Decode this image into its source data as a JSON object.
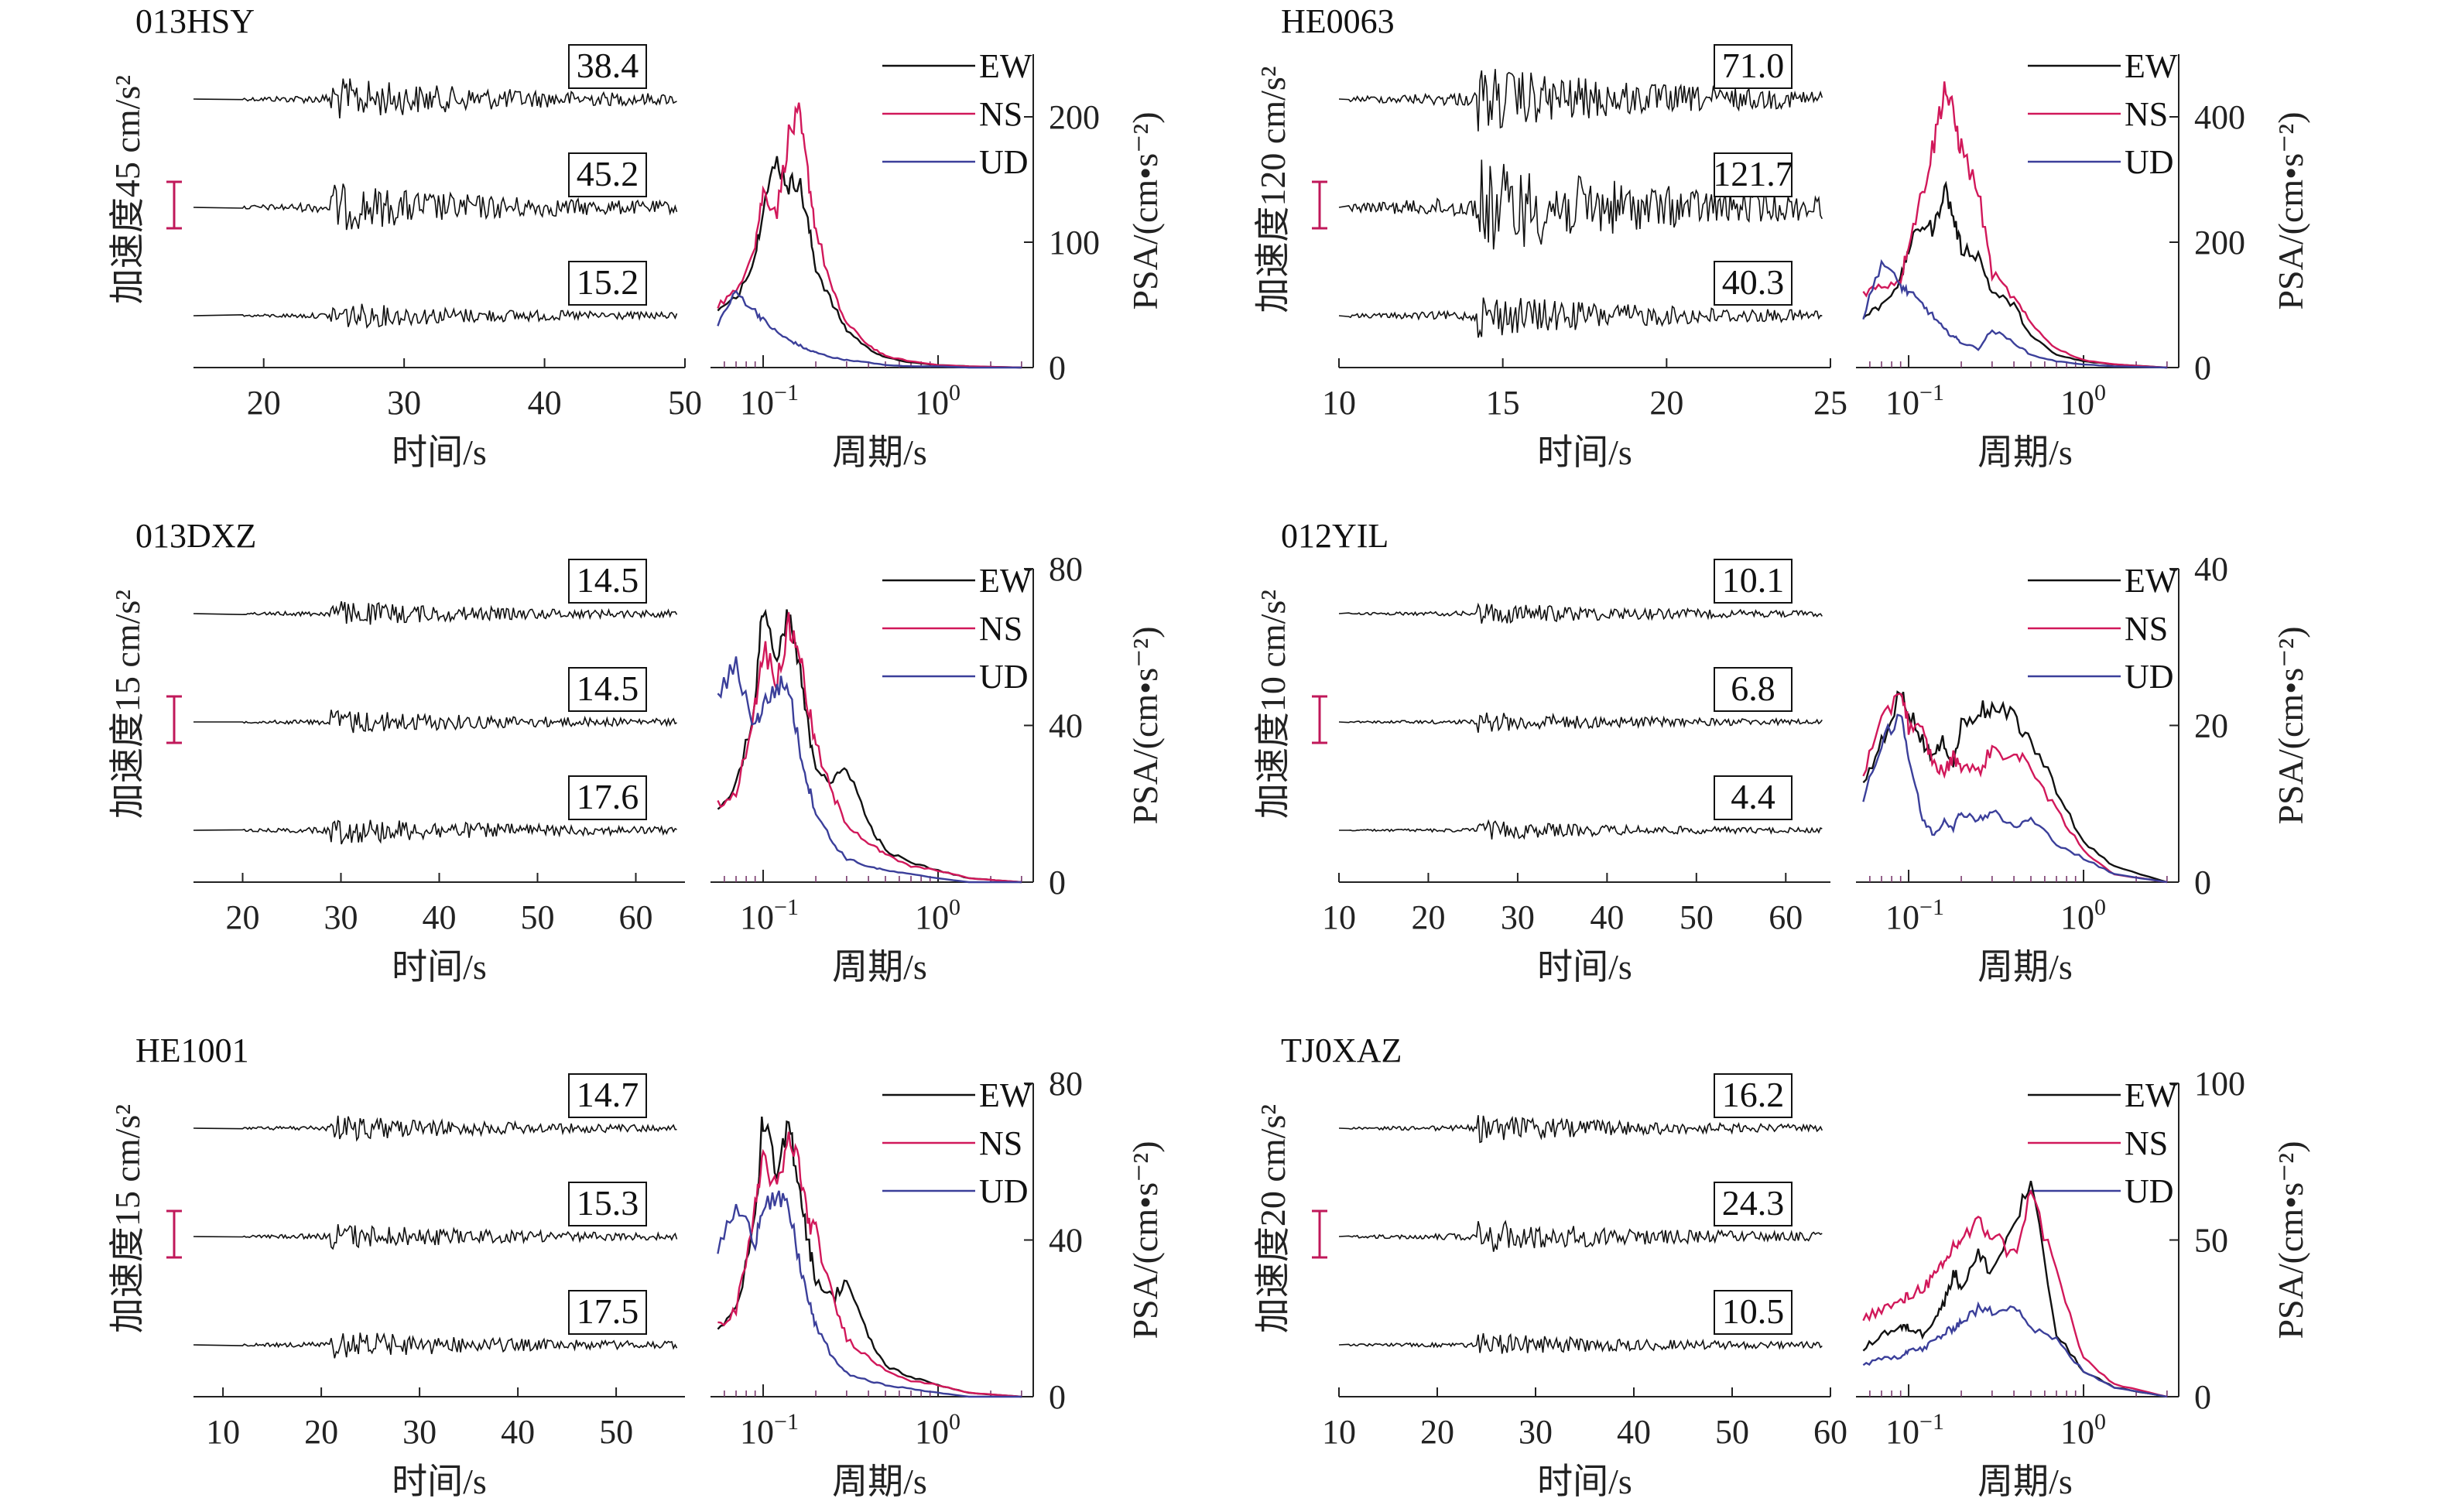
{
  "chart_data": [
    {
      "type": "line",
      "panel": "time-history",
      "station": "013HSY",
      "ylabel": "加速度45 cm/s²",
      "xlabel": "时间/s",
      "x_ticks": [
        "20",
        "30",
        "40",
        "50"
      ],
      "xlim": [
        15,
        50
      ],
      "components": [
        "EW",
        "NS",
        "UD"
      ],
      "peak_values": [
        "38.4",
        "45.2",
        "15.2"
      ],
      "colors": {
        "trace": "#111111",
        "scale": "#c0185a"
      }
    },
    {
      "type": "line",
      "panel": "spectrum",
      "station": "013HSY",
      "xlabel": "周期/s",
      "ylabel": "PSA/(cm•s⁻²)",
      "x_scale": "log",
      "x_ticks": [
        {
          "base": "10",
          "exp": "−1"
        },
        {
          "base": "10",
          "exp": "0"
        }
      ],
      "y_ticks": [
        "0",
        "100",
        "200"
      ],
      "ylim": [
        0,
        250
      ],
      "legend": [
        "EW",
        "NS",
        "UD"
      ],
      "colors": {
        "EW": "#111111",
        "NS": "#d1185a",
        "UD": "#3b3f9a"
      },
      "series": [
        {
          "name": "EW",
          "x": [
            0.055,
            0.07,
            0.09,
            0.1,
            0.12,
            0.14,
            0.16,
            0.18,
            0.2,
            0.25,
            0.3,
            0.4,
            0.5,
            0.7,
            1.0,
            1.5,
            3
          ],
          "values": [
            45,
            55,
            90,
            130,
            165,
            145,
            150,
            115,
            80,
            50,
            30,
            15,
            8,
            4,
            2,
            1,
            0
          ]
        },
        {
          "name": "NS",
          "x": [
            0.055,
            0.07,
            0.09,
            0.1,
            0.12,
            0.14,
            0.16,
            0.18,
            0.2,
            0.25,
            0.3,
            0.4,
            0.5,
            0.7,
            1.0,
            1.5,
            3
          ],
          "values": [
            50,
            60,
            100,
            140,
            125,
            185,
            200,
            155,
            110,
            60,
            35,
            18,
            9,
            5,
            2,
            1,
            0
          ]
        },
        {
          "name": "UD",
          "x": [
            0.055,
            0.07,
            0.09,
            0.1,
            0.12,
            0.14,
            0.16,
            0.18,
            0.2,
            0.25,
            0.3,
            0.4,
            0.5,
            0.7,
            1.0,
            1.5,
            3
          ],
          "values": [
            35,
            60,
            45,
            38,
            28,
            22,
            18,
            14,
            12,
            8,
            6,
            4,
            2,
            1,
            1,
            0,
            0
          ]
        }
      ]
    },
    {
      "type": "line",
      "panel": "time-history",
      "station": "HE0063",
      "ylabel": "加速度120 cm/s²",
      "xlabel": "时间/s",
      "x_ticks": [
        "10",
        "15",
        "20",
        "25"
      ],
      "xlim": [
        10,
        25
      ],
      "components": [
        "EW",
        "NS",
        "UD"
      ],
      "peak_values": [
        "71.0",
        "121.7",
        "40.3"
      ],
      "colors": {
        "trace": "#111111",
        "scale": "#c0185a"
      }
    },
    {
      "type": "line",
      "panel": "spectrum",
      "station": "HE0063",
      "xlabel": "周期/s",
      "ylabel": "PSA/(cm•s⁻²)",
      "x_scale": "log",
      "x_ticks": [
        {
          "base": "10",
          "exp": "−1"
        },
        {
          "base": "10",
          "exp": "0"
        }
      ],
      "y_ticks": [
        "0",
        "200",
        "400"
      ],
      "ylim": [
        0,
        500
      ],
      "legend": [
        "EW",
        "NS",
        "UD"
      ],
      "colors": {
        "EW": "#111111",
        "NS": "#d1185a",
        "UD": "#3b3f9a"
      },
      "series": [
        {
          "name": "EW",
          "x": [
            0.055,
            0.07,
            0.09,
            0.1,
            0.12,
            0.14,
            0.16,
            0.18,
            0.2,
            0.25,
            0.3,
            0.4,
            0.5,
            0.7,
            1.0,
            1.5,
            3
          ],
          "values": [
            80,
            100,
            140,
            190,
            230,
            220,
            290,
            240,
            190,
            180,
            120,
            100,
            50,
            20,
            10,
            5,
            0
          ]
        },
        {
          "name": "NS",
          "x": [
            0.055,
            0.07,
            0.09,
            0.1,
            0.12,
            0.14,
            0.16,
            0.18,
            0.2,
            0.25,
            0.3,
            0.4,
            0.5,
            0.7,
            1.0,
            1.5,
            3
          ],
          "values": [
            120,
            130,
            140,
            200,
            280,
            360,
            450,
            400,
            350,
            280,
            150,
            110,
            70,
            30,
            12,
            5,
            0
          ]
        },
        {
          "name": "UD",
          "x": [
            0.055,
            0.07,
            0.09,
            0.1,
            0.12,
            0.14,
            0.16,
            0.18,
            0.2,
            0.25,
            0.3,
            0.4,
            0.5,
            0.7,
            1.0,
            1.5,
            3
          ],
          "values": [
            80,
            170,
            130,
            120,
            100,
            80,
            60,
            50,
            40,
            30,
            60,
            40,
            20,
            10,
            5,
            2,
            0
          ]
        }
      ]
    },
    {
      "type": "line",
      "panel": "time-history",
      "station": "013DXZ",
      "ylabel": "加速度15 cm/s²",
      "xlabel": "时间/s",
      "x_ticks": [
        "20",
        "30",
        "40",
        "50",
        "60"
      ],
      "xlim": [
        15,
        65
      ],
      "components": [
        "EW",
        "NS",
        "UD"
      ],
      "peak_values": [
        "14.5",
        "14.5",
        "17.6"
      ],
      "colors": {
        "trace": "#111111",
        "scale": "#c0185a"
      }
    },
    {
      "type": "line",
      "panel": "spectrum",
      "station": "013DXZ",
      "xlabel": "周期/s",
      "ylabel": "PSA/(cm•s⁻²)",
      "x_scale": "log",
      "x_ticks": [
        {
          "base": "10",
          "exp": "−1"
        },
        {
          "base": "10",
          "exp": "0"
        }
      ],
      "y_ticks": [
        "0",
        "40",
        "80"
      ],
      "ylim": [
        0,
        80
      ],
      "legend": [
        "EW",
        "NS",
        "UD"
      ],
      "colors": {
        "EW": "#111111",
        "NS": "#d1185a",
        "UD": "#3b3f9a"
      },
      "series": [
        {
          "name": "EW",
          "x": [
            0.055,
            0.07,
            0.09,
            0.1,
            0.12,
            0.14,
            0.16,
            0.18,
            0.2,
            0.25,
            0.3,
            0.4,
            0.5,
            0.7,
            1.0,
            1.5,
            3
          ],
          "values": [
            18,
            25,
            45,
            72,
            55,
            68,
            55,
            40,
            30,
            25,
            30,
            15,
            8,
            5,
            3,
            1,
            0
          ]
        },
        {
          "name": "NS",
          "x": [
            0.055,
            0.07,
            0.09,
            0.1,
            0.12,
            0.14,
            0.16,
            0.18,
            0.2,
            0.25,
            0.3,
            0.4,
            0.5,
            0.7,
            1.0,
            1.5,
            3
          ],
          "values": [
            20,
            22,
            45,
            60,
            52,
            65,
            60,
            45,
            35,
            22,
            15,
            10,
            7,
            4,
            3,
            1,
            0
          ]
        },
        {
          "name": "UD",
          "x": [
            0.055,
            0.07,
            0.09,
            0.1,
            0.12,
            0.14,
            0.16,
            0.18,
            0.2,
            0.25,
            0.3,
            0.4,
            0.5,
            0.7,
            1.0,
            1.5,
            3
          ],
          "values": [
            48,
            55,
            40,
            45,
            50,
            50,
            35,
            25,
            18,
            10,
            6,
            4,
            3,
            2,
            1,
            0,
            0
          ]
        }
      ]
    },
    {
      "type": "line",
      "panel": "time-history",
      "station": "012YIL",
      "ylabel": "加速度10 cm/s²",
      "xlabel": "时间/s",
      "x_ticks": [
        "10",
        "20",
        "30",
        "40",
        "50",
        "60"
      ],
      "xlim": [
        10,
        65
      ],
      "components": [
        "EW",
        "NS",
        "UD"
      ],
      "peak_values": [
        "10.1",
        "6.8",
        "4.4"
      ],
      "colors": {
        "trace": "#111111",
        "scale": "#c0185a"
      }
    },
    {
      "type": "line",
      "panel": "spectrum",
      "station": "012YIL",
      "xlabel": "周期/s",
      "ylabel": "PSA/(cm•s⁻²)",
      "x_scale": "log",
      "x_ticks": [
        {
          "base": "10",
          "exp": "−1"
        },
        {
          "base": "10",
          "exp": "0"
        }
      ],
      "y_ticks": [
        "0",
        "20",
        "40"
      ],
      "ylim": [
        0,
        40
      ],
      "legend": [
        "EW",
        "NS",
        "UD"
      ],
      "colors": {
        "EW": "#111111",
        "NS": "#d1185a",
        "UD": "#3b3f9a"
      },
      "series": [
        {
          "name": "EW",
          "x": [
            0.055,
            0.07,
            0.09,
            0.1,
            0.12,
            0.14,
            0.16,
            0.18,
            0.2,
            0.25,
            0.3,
            0.4,
            0.5,
            0.7,
            1.0,
            1.5,
            3
          ],
          "values": [
            12,
            18,
            24,
            22,
            18,
            16,
            18,
            15,
            20,
            22,
            22,
            21,
            18,
            12,
            5,
            2,
            0
          ]
        },
        {
          "name": "NS",
          "x": [
            0.055,
            0.07,
            0.09,
            0.1,
            0.12,
            0.14,
            0.16,
            0.18,
            0.2,
            0.25,
            0.3,
            0.4,
            0.5,
            0.7,
            1.0,
            1.5,
            3
          ],
          "values": [
            14,
            20,
            25,
            20,
            19,
            15,
            14,
            16,
            15,
            14,
            17,
            16,
            15,
            9,
            4,
            1,
            0
          ]
        },
        {
          "name": "UD",
          "x": [
            0.055,
            0.07,
            0.09,
            0.1,
            0.12,
            0.14,
            0.16,
            0.18,
            0.2,
            0.25,
            0.3,
            0.4,
            0.5,
            0.7,
            1.0,
            1.5,
            3
          ],
          "values": [
            10,
            18,
            22,
            16,
            8,
            6,
            8,
            7,
            9,
            8,
            9,
            7,
            8,
            5,
            3,
            1,
            0
          ]
        }
      ]
    },
    {
      "type": "line",
      "panel": "time-history",
      "station": "HE1001",
      "ylabel": "加速度15 cm/s²",
      "xlabel": "时间/s",
      "x_ticks": [
        "10",
        "20",
        "30",
        "40",
        "50"
      ],
      "xlim": [
        7,
        57
      ],
      "components": [
        "EW",
        "NS",
        "UD"
      ],
      "peak_values": [
        "14.7",
        "15.3",
        "17.5"
      ],
      "colors": {
        "trace": "#111111",
        "scale": "#c0185a"
      }
    },
    {
      "type": "line",
      "panel": "spectrum",
      "station": "HE1001",
      "xlabel": "周期/s",
      "ylabel": "PSA/(cm•s⁻²)",
      "x_scale": "log",
      "x_ticks": [
        {
          "base": "10",
          "exp": "−1"
        },
        {
          "base": "10",
          "exp": "0"
        }
      ],
      "y_ticks": [
        "0",
        "40",
        "80"
      ],
      "ylim": [
        0,
        80
      ],
      "legend": [
        "EW",
        "NS",
        "UD"
      ],
      "colors": {
        "EW": "#111111",
        "NS": "#d1185a",
        "UD": "#3b3f9a"
      },
      "series": [
        {
          "name": "EW",
          "x": [
            0.055,
            0.07,
            0.09,
            0.1,
            0.12,
            0.14,
            0.16,
            0.18,
            0.2,
            0.25,
            0.3,
            0.4,
            0.5,
            0.7,
            1.0,
            1.5,
            3
          ],
          "values": [
            18,
            22,
            45,
            72,
            55,
            70,
            55,
            40,
            30,
            25,
            30,
            15,
            8,
            5,
            3,
            1,
            0
          ]
        },
        {
          "name": "NS",
          "x": [
            0.055,
            0.07,
            0.09,
            0.1,
            0.12,
            0.14,
            0.16,
            0.18,
            0.2,
            0.25,
            0.3,
            0.4,
            0.5,
            0.7,
            1.0,
            1.5,
            3
          ],
          "values": [
            18,
            22,
            48,
            62,
            52,
            65,
            60,
            45,
            42,
            25,
            15,
            10,
            7,
            4,
            3,
            1,
            0
          ]
        },
        {
          "name": "UD",
          "x": [
            0.055,
            0.07,
            0.09,
            0.1,
            0.12,
            0.14,
            0.16,
            0.18,
            0.2,
            0.25,
            0.3,
            0.4,
            0.5,
            0.7,
            1.0,
            1.5,
            3
          ],
          "values": [
            38,
            48,
            40,
            50,
            50,
            48,
            35,
            25,
            18,
            10,
            6,
            4,
            3,
            2,
            1,
            0,
            0
          ]
        }
      ]
    },
    {
      "type": "line",
      "panel": "time-history",
      "station": "TJ0XAZ",
      "ylabel": "加速度20 cm/s²",
      "xlabel": "时间/s",
      "x_ticks": [
        "10",
        "20",
        "30",
        "40",
        "50",
        "60"
      ],
      "xlim": [
        10,
        60
      ],
      "components": [
        "EW",
        "NS",
        "UD"
      ],
      "peak_values": [
        "16.2",
        "24.3",
        "10.5"
      ],
      "colors": {
        "trace": "#111111",
        "scale": "#c0185a"
      }
    },
    {
      "type": "line",
      "panel": "spectrum",
      "station": "TJ0XAZ",
      "xlabel": "周期/s",
      "ylabel": "PSA/(cm•s⁻²)",
      "x_scale": "log",
      "x_ticks": [
        {
          "base": "10",
          "exp": "−1"
        },
        {
          "base": "10",
          "exp": "0"
        }
      ],
      "y_ticks": [
        "0",
        "50",
        "100"
      ],
      "ylim": [
        0,
        100
      ],
      "legend": [
        "EW",
        "NS",
        "UD"
      ],
      "colors": {
        "EW": "#111111",
        "NS": "#d1185a",
        "UD": "#3b3f9a"
      },
      "series": [
        {
          "name": "EW",
          "x": [
            0.055,
            0.07,
            0.09,
            0.1,
            0.12,
            0.14,
            0.16,
            0.18,
            0.2,
            0.25,
            0.3,
            0.4,
            0.5,
            0.7,
            1.0,
            1.5,
            3
          ],
          "values": [
            15,
            20,
            22,
            22,
            20,
            25,
            30,
            40,
            35,
            45,
            40,
            55,
            68,
            20,
            8,
            3,
            0
          ]
        },
        {
          "name": "NS",
          "x": [
            0.055,
            0.07,
            0.09,
            0.1,
            0.12,
            0.14,
            0.16,
            0.18,
            0.2,
            0.25,
            0.3,
            0.4,
            0.5,
            0.7,
            1.0,
            1.5,
            3
          ],
          "values": [
            25,
            28,
            30,
            32,
            35,
            38,
            42,
            48,
            50,
            55,
            52,
            45,
            65,
            40,
            12,
            4,
            0
          ]
        },
        {
          "name": "UD",
          "x": [
            0.055,
            0.07,
            0.09,
            0.1,
            0.12,
            0.14,
            0.16,
            0.18,
            0.2,
            0.25,
            0.3,
            0.4,
            0.5,
            0.7,
            1.0,
            1.5,
            3
          ],
          "values": [
            10,
            12,
            13,
            15,
            15,
            18,
            20,
            22,
            24,
            28,
            27,
            30,
            22,
            18,
            8,
            3,
            0
          ]
        }
      ]
    }
  ]
}
